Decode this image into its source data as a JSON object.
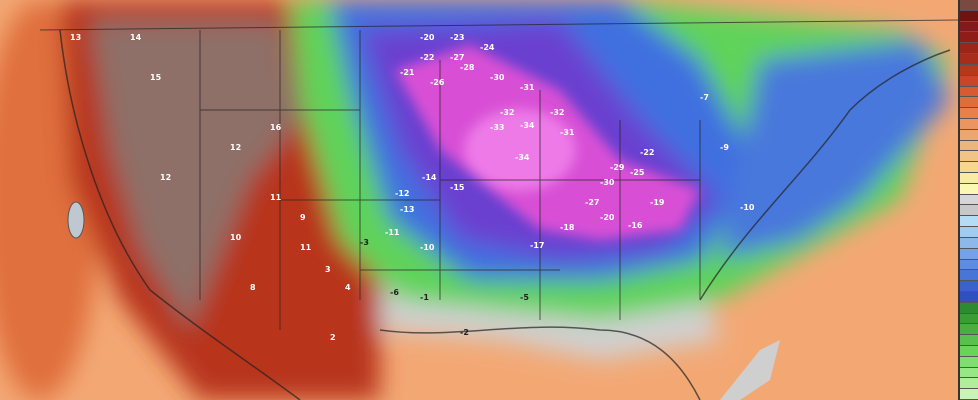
{
  "map": {
    "type": "surface temperature forecast map",
    "region": "North America",
    "colors": {
      "ocean_warm": "#f3a874",
      "hot": "#b8361e",
      "terrain_brown": "#8e7068",
      "cool_green": "#5fd35a",
      "cold_blue": "#3f6fe0",
      "very_cold_purple": "#6a3fd0",
      "extreme_cold_magenta": "#d84fd6",
      "near_zero_gray": "#cfcfcf"
    },
    "labels": [
      "-20",
      "-21",
      "-22",
      "-23",
      "-24",
      "-26",
      "-27",
      "-28",
      "-30",
      "-31",
      "-32",
      "-33",
      "-34",
      "-34",
      "-32",
      "-31",
      "-30",
      "-29",
      "-27",
      "-25",
      "-22",
      "-20",
      "-19",
      "-18",
      "-17",
      "-16",
      "-15",
      "-14",
      "-13",
      "-12",
      "-11",
      "-10",
      "-10",
      "-9",
      "-7",
      "-6",
      "-5",
      "-3",
      "-2",
      "-1",
      "13",
      "14",
      "15",
      "12",
      "11",
      "10",
      "9",
      "8",
      "16",
      "12",
      "11",
      "4",
      "3",
      "2"
    ]
  },
  "color_scale": [
    "#7a4a40",
    "#6e1410",
    "#84181a",
    "#8f1c16",
    "#9c2418",
    "#a82c1a",
    "#b8361e",
    "#c8452a",
    "#d85a30",
    "#e06c3c",
    "#e8804a",
    "#eb9560",
    "#eda76e",
    "#efb47a",
    "#f1c486",
    "#f5d88e",
    "#f8eca0",
    "#fbf8b4",
    "#d6d6d6",
    "#c8c8c8",
    "#b4dcf4",
    "#a0ccf0",
    "#8cb8ec",
    "#74a2e6",
    "#5e8ce0",
    "#4876d8",
    "#3a62cf",
    "#3050c0",
    "#2e8a2e",
    "#3a9c36",
    "#48ae40",
    "#58c04c",
    "#6ad45a",
    "#7ee06c",
    "#96e884",
    "#b0ee9c",
    "#c8f4b8"
  ]
}
